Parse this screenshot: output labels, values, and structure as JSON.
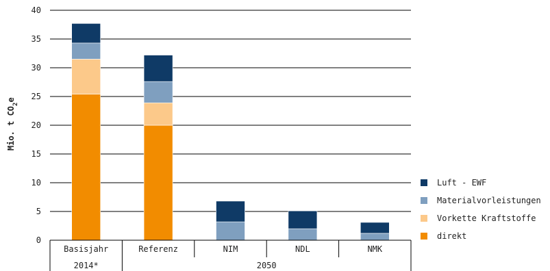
{
  "chart_data": {
    "type": "bar",
    "stacked": true,
    "categories": [
      "Basisjahr",
      "Referenz",
      "NIM",
      "NDL",
      "NMK"
    ],
    "category_sublabels": [
      "2014*",
      "2050",
      "2050",
      "2050",
      "2050"
    ],
    "group_label": "2050",
    "ylabel": "Mio. t CO",
    "ylabel_sub": "2",
    "ylabel_suffix": "e",
    "ylim": [
      0,
      40
    ],
    "yticks": [
      0,
      5,
      10,
      15,
      20,
      25,
      30,
      35,
      40
    ],
    "grid": true,
    "legend_position": "right",
    "series": [
      {
        "name": "direkt",
        "color": "#f28c00",
        "values": [
          25.4,
          20.0,
          0,
          0,
          0
        ]
      },
      {
        "name": "Vorkette Kraftstoffe",
        "color": "#fcc98a",
        "values": [
          6.1,
          3.9,
          0,
          0,
          0
        ]
      },
      {
        "name": "Materialvorleistungen",
        "color": "#7f9fbf",
        "values": [
          2.8,
          3.7,
          3.2,
          2.0,
          1.2
        ]
      },
      {
        "name": "Luft - EWF",
        "color": "#0f3a66",
        "values": [
          3.4,
          4.6,
          3.6,
          3.1,
          1.9
        ]
      }
    ]
  }
}
